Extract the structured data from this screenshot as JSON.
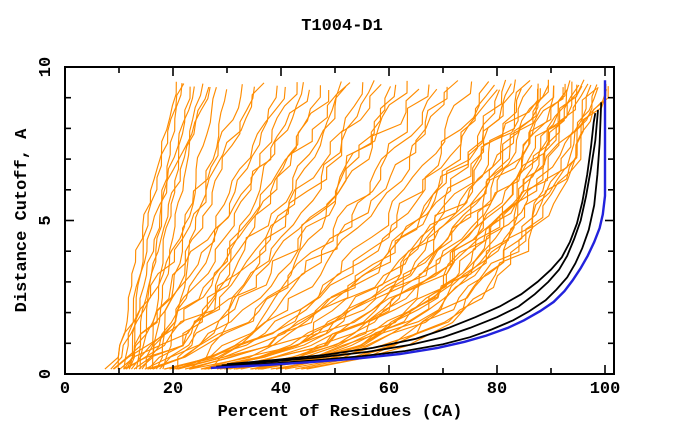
{
  "title": "T1004-D1",
  "chart_data": {
    "type": "line",
    "title": "T1004-D1",
    "xlabel": "Percent of Residues (CA)",
    "ylabel": "Distance Cutoff, A",
    "xlim": [
      0,
      101.7
    ],
    "ylim": [
      0,
      10
    ],
    "x_major_ticks": [
      0,
      20,
      40,
      60,
      80,
      100
    ],
    "x_minor_ticks": [
      10,
      30,
      50,
      70,
      90
    ],
    "y_major_ticks": [
      0,
      5,
      10
    ],
    "y_minor_ticks": [
      1,
      2,
      3,
      4,
      6,
      7,
      8,
      9
    ],
    "grid": false,
    "legend": "none",
    "colors": {
      "other_models": "#ff8c00",
      "marked_models": "#000000",
      "best_model": "#2222dd",
      "axis": "#000000",
      "background": "#ffffff"
    },
    "series": [
      {
        "name": "best-model-curve",
        "role": "best_model",
        "color": "#2222dd",
        "width": 2.4,
        "points": [
          [
            27,
            0.2
          ],
          [
            36,
            0.28
          ],
          [
            45,
            0.38
          ],
          [
            54,
            0.5
          ],
          [
            62,
            0.65
          ],
          [
            69,
            0.85
          ],
          [
            74,
            1.05
          ],
          [
            78,
            1.25
          ],
          [
            82,
            1.5
          ],
          [
            85,
            1.75
          ],
          [
            88,
            2.05
          ],
          [
            90.5,
            2.35
          ],
          [
            92.5,
            2.7
          ],
          [
            94,
            3.05
          ],
          [
            95.5,
            3.45
          ],
          [
            96.8,
            3.85
          ],
          [
            98,
            4.3
          ],
          [
            99,
            4.75
          ],
          [
            99.6,
            5.2
          ],
          [
            100,
            5.8
          ],
          [
            100,
            9.57
          ]
        ]
      },
      {
        "name": "marked-model-curve-1",
        "role": "marked_model",
        "color": "#000000",
        "width": 1.8,
        "points": [
          [
            28,
            0.24
          ],
          [
            37,
            0.33
          ],
          [
            46,
            0.44
          ],
          [
            55,
            0.58
          ],
          [
            63,
            0.75
          ],
          [
            70,
            0.97
          ],
          [
            75,
            1.2
          ],
          [
            79,
            1.45
          ],
          [
            83,
            1.75
          ],
          [
            86,
            2.05
          ],
          [
            89,
            2.4
          ],
          [
            91,
            2.75
          ],
          [
            93,
            3.15
          ],
          [
            94.5,
            3.6
          ],
          [
            95.8,
            4.1
          ],
          [
            97,
            4.7
          ],
          [
            98,
            5.5
          ],
          [
            98.6,
            6.5
          ],
          [
            99,
            7.5
          ],
          [
            99.3,
            8.85
          ]
        ]
      },
      {
        "name": "marked-model-curve-2",
        "role": "marked_model",
        "color": "#000000",
        "width": 1.8,
        "points": [
          [
            29,
            0.28
          ],
          [
            38,
            0.4
          ],
          [
            47,
            0.54
          ],
          [
            56,
            0.72
          ],
          [
            64,
            0.95
          ],
          [
            70,
            1.2
          ],
          [
            75,
            1.5
          ],
          [
            80,
            1.85
          ],
          [
            84,
            2.2
          ],
          [
            87,
            2.6
          ],
          [
            89.5,
            3.0
          ],
          [
            91.5,
            3.4
          ],
          [
            93,
            3.85
          ],
          [
            94.3,
            4.4
          ],
          [
            95.5,
            5.0
          ],
          [
            96.5,
            5.8
          ],
          [
            97.4,
            6.7
          ],
          [
            98.2,
            7.6
          ],
          [
            98.7,
            8.6
          ]
        ]
      },
      {
        "name": "marked-model-curve-3",
        "role": "marked_model",
        "color": "#000000",
        "width": 1.8,
        "points": [
          [
            30,
            0.32
          ],
          [
            39,
            0.46
          ],
          [
            48,
            0.62
          ],
          [
            57,
            0.85
          ],
          [
            65,
            1.15
          ],
          [
            71,
            1.5
          ],
          [
            76,
            1.85
          ],
          [
            80.5,
            2.2
          ],
          [
            84.5,
            2.6
          ],
          [
            87.5,
            3.0
          ],
          [
            90,
            3.4
          ],
          [
            92,
            3.8
          ],
          [
            93.5,
            4.3
          ],
          [
            94.8,
            4.9
          ],
          [
            95.8,
            5.6
          ],
          [
            96.7,
            6.5
          ],
          [
            97.4,
            7.4
          ],
          [
            97.9,
            8.2
          ],
          [
            98.2,
            8.5
          ]
        ]
      }
    ],
    "other_model_curves": {
      "description": "approx. 70 orange model curves (estimated); each entry [start_percent, top_percent, shape_exponent, seed] expands to a monotone GDT-style polyline from cutoff ~0.16 A to ~9.5 A",
      "top_cutoff_range": [
        9.25,
        9.6
      ],
      "params": [
        [
          12,
          20.5,
          1.4,
          101
        ],
        [
          14,
          21.5,
          1.2,
          102
        ],
        [
          10,
          22,
          1.5,
          103
        ],
        [
          15,
          23,
          1.1,
          104
        ],
        [
          12,
          24,
          1.3,
          105
        ],
        [
          16,
          25.5,
          1.2,
          106
        ],
        [
          13,
          26.5,
          1.4,
          107
        ],
        [
          17,
          28,
          1.1,
          108
        ],
        [
          11,
          27,
          1.6,
          109
        ],
        [
          18,
          30,
          1.0,
          110
        ],
        [
          8,
          33,
          0.9,
          111
        ],
        [
          10,
          35,
          0.8,
          112
        ],
        [
          7,
          37,
          0.95,
          113
        ],
        [
          12,
          39,
          0.7,
          114
        ],
        [
          9,
          41,
          0.85,
          115
        ],
        [
          11,
          43,
          0.75,
          116
        ],
        [
          8,
          45,
          0.9,
          117
        ],
        [
          13,
          47,
          0.65,
          118
        ],
        [
          10,
          49,
          0.8,
          119
        ],
        [
          7,
          51,
          0.7,
          120
        ],
        [
          12,
          53,
          0.75,
          121
        ],
        [
          9,
          55,
          0.6,
          122
        ],
        [
          14,
          57,
          0.65,
          123
        ],
        [
          8,
          59,
          0.7,
          124
        ],
        [
          11,
          61,
          0.55,
          125
        ],
        [
          10,
          63,
          0.6,
          126
        ],
        [
          7,
          65,
          0.65,
          127
        ],
        [
          13,
          67,
          0.5,
          128
        ],
        [
          9,
          69,
          0.55,
          129
        ],
        [
          12,
          71,
          0.5,
          130
        ],
        [
          8,
          73,
          0.55,
          131
        ],
        [
          10,
          75,
          0.45,
          132
        ],
        [
          20,
          44,
          0.9,
          133
        ],
        [
          22,
          52,
          0.8,
          134
        ],
        [
          25,
          60,
          0.7,
          135
        ],
        [
          6,
          78,
          0.42,
          136
        ],
        [
          9,
          80,
          0.4,
          137
        ],
        [
          5,
          82,
          0.38,
          138
        ],
        [
          8,
          84,
          0.36,
          139
        ],
        [
          6,
          86,
          0.34,
          140
        ],
        [
          10,
          88,
          0.33,
          141
        ],
        [
          7,
          90,
          0.32,
          142
        ],
        [
          5,
          92,
          0.3,
          143
        ],
        [
          9,
          94,
          0.28,
          144
        ],
        [
          6,
          96,
          0.27,
          145
        ],
        [
          8,
          98,
          0.26,
          146
        ],
        [
          5,
          100,
          0.24,
          147
        ],
        [
          7,
          99,
          0.25,
          148
        ],
        [
          6,
          97,
          0.28,
          149
        ],
        [
          9,
          95,
          0.3,
          150
        ],
        [
          5,
          93,
          0.32,
          151
        ],
        [
          8,
          91,
          0.33,
          152
        ],
        [
          6,
          89,
          0.35,
          153
        ],
        [
          10,
          87,
          0.36,
          154
        ],
        [
          7,
          85,
          0.38,
          155
        ],
        [
          5,
          83,
          0.4,
          156
        ],
        [
          9,
          81,
          0.42,
          157
        ],
        [
          6,
          79,
          0.44,
          158
        ],
        [
          8,
          93,
          0.29,
          159
        ],
        [
          5,
          97,
          0.26,
          160
        ],
        [
          7,
          95,
          0.27,
          161
        ],
        [
          6,
          99,
          0.23,
          162
        ],
        [
          9,
          90,
          0.31,
          163
        ],
        [
          5,
          88,
          0.34,
          164
        ],
        [
          8,
          86,
          0.37,
          165
        ],
        [
          6,
          100,
          0.22,
          166
        ],
        [
          7,
          92,
          0.3,
          167
        ],
        [
          10,
          94,
          0.29,
          168
        ],
        [
          5,
          96,
          0.25,
          169
        ],
        [
          8,
          100,
          0.23,
          170
        ]
      ]
    }
  }
}
